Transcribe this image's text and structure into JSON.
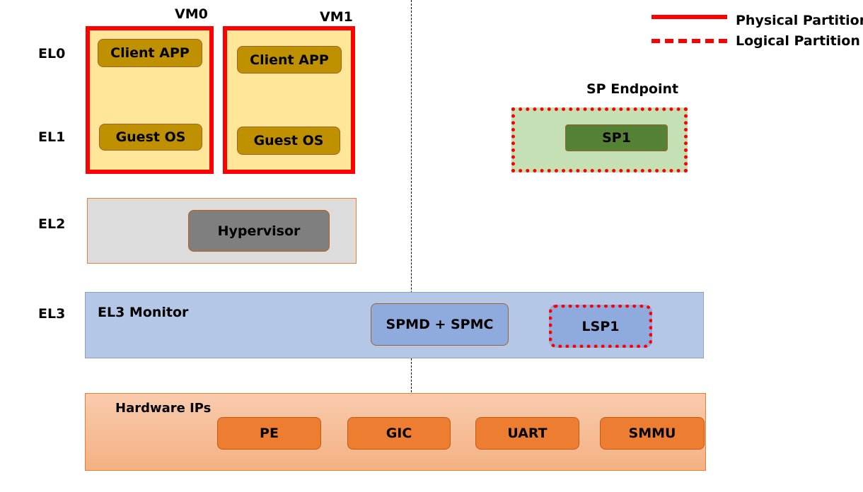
{
  "legend": {
    "physical": "Physical Partition",
    "logical": "Logical Partition"
  },
  "levels": [
    "EL0",
    "EL1",
    "EL2",
    "EL3"
  ],
  "vm0": {
    "label": "VM0",
    "app": "Client APP",
    "os": "Guest OS"
  },
  "vm1": {
    "label": "VM1",
    "app": "Client APP",
    "os": "Guest OS"
  },
  "sp": {
    "label": "SP Endpoint",
    "sp1": "SP1"
  },
  "el2": {
    "hypervisor": "Hypervisor"
  },
  "el3": {
    "label": "EL3 Monitor",
    "spmd": "SPMD + SPMC",
    "lsp1": "LSP1"
  },
  "hardware": {
    "label": "Hardware IPs",
    "items": [
      "PE",
      "GIC",
      "UART",
      "SMMU"
    ]
  },
  "colors": {
    "partition": "#FF0000",
    "vm": "#FFE699",
    "app": "#BF9000",
    "sp_area": "#C5E0B4",
    "sp1": "#548235",
    "el2": "#DCDCDC",
    "hypervisor": "#7F7F7F",
    "el3": "#B4C7E7",
    "spmd": "#8FAADC",
    "hardware": "#F8CBAD",
    "ip": "#ED7D31"
  }
}
